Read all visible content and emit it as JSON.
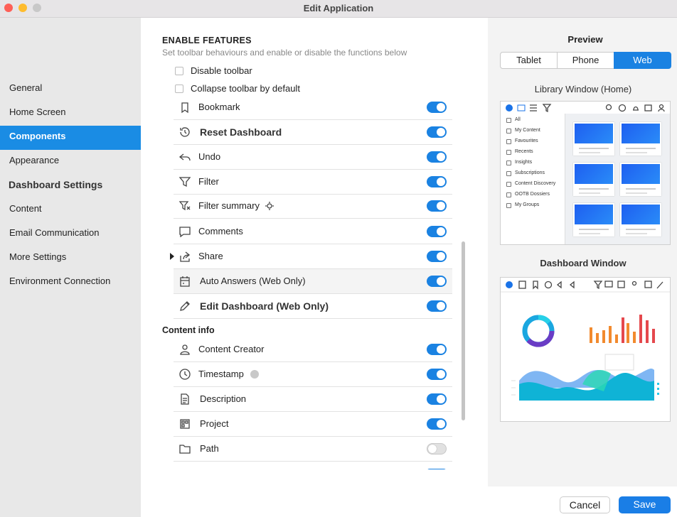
{
  "window": {
    "title": "Edit Application"
  },
  "sidebar": {
    "items": [
      {
        "label": "General",
        "selected": false,
        "group": false
      },
      {
        "label": "Home Screen",
        "selected": false,
        "group": false
      },
      {
        "label": "Components",
        "selected": true,
        "group": false
      },
      {
        "label": "Appearance",
        "selected": false,
        "group": false
      },
      {
        "label": "Dashboard Settings",
        "selected": false,
        "group": true
      },
      {
        "label": "Content",
        "selected": false,
        "group": false
      },
      {
        "label": "Email Communication",
        "selected": false,
        "group": false
      },
      {
        "label": "More Settings",
        "selected": false,
        "group": false
      },
      {
        "label": "Environment Connection",
        "selected": false,
        "group": false
      }
    ]
  },
  "features": {
    "heading": "ENABLE FEATURES",
    "subtitle": "Set toolbar behaviours and enable or disable the functions below",
    "checkboxes": [
      {
        "label": "Disable toolbar",
        "checked": false
      },
      {
        "label": "Collapse toolbar by default",
        "checked": false
      }
    ],
    "toolbar_items": [
      {
        "label": "Bookmark",
        "enabled": true,
        "bold": false
      },
      {
        "label": "Reset Dashboard",
        "enabled": true,
        "bold": true
      },
      {
        "label": "Undo",
        "enabled": true,
        "bold": false
      },
      {
        "label": "Filter",
        "enabled": true,
        "bold": false
      },
      {
        "label": "Filter summary",
        "enabled": true,
        "bold": false
      },
      {
        "label": "Comments",
        "enabled": true,
        "bold": false
      },
      {
        "label": "Share",
        "enabled": true,
        "bold": false
      },
      {
        "label": "Auto Answers (Web Only)",
        "enabled": true,
        "bold": false
      },
      {
        "label": "Edit Dashboard (Web Only)",
        "enabled": true,
        "bold": true
      }
    ],
    "section": "Content info",
    "content_items": [
      {
        "label": "Content Creator",
        "enabled": true,
        "bold": false
      },
      {
        "label": "Timestamp",
        "enabled": true,
        "bold": false
      },
      {
        "label": "Description",
        "enabled": true,
        "bold": false
      },
      {
        "label": "Project",
        "enabled": true,
        "bold": false
      },
      {
        "label": "Path",
        "enabled": false,
        "bold": false
      }
    ]
  },
  "preview": {
    "heading": "Preview",
    "tabs": [
      "Tablet",
      "Phone",
      "Web"
    ],
    "selected_tab": 2,
    "library_title": "Library Window (Home)",
    "library_nav": [
      "All",
      "My Content",
      "Favourites",
      "Recents",
      "Insights",
      "Subscriptions",
      "Content Discovery",
      "OOTB Dossiers",
      "My Groups"
    ],
    "dashboard_title": "Dashboard Window"
  },
  "buttons": {
    "cancel": "Cancel",
    "save": "Save"
  }
}
